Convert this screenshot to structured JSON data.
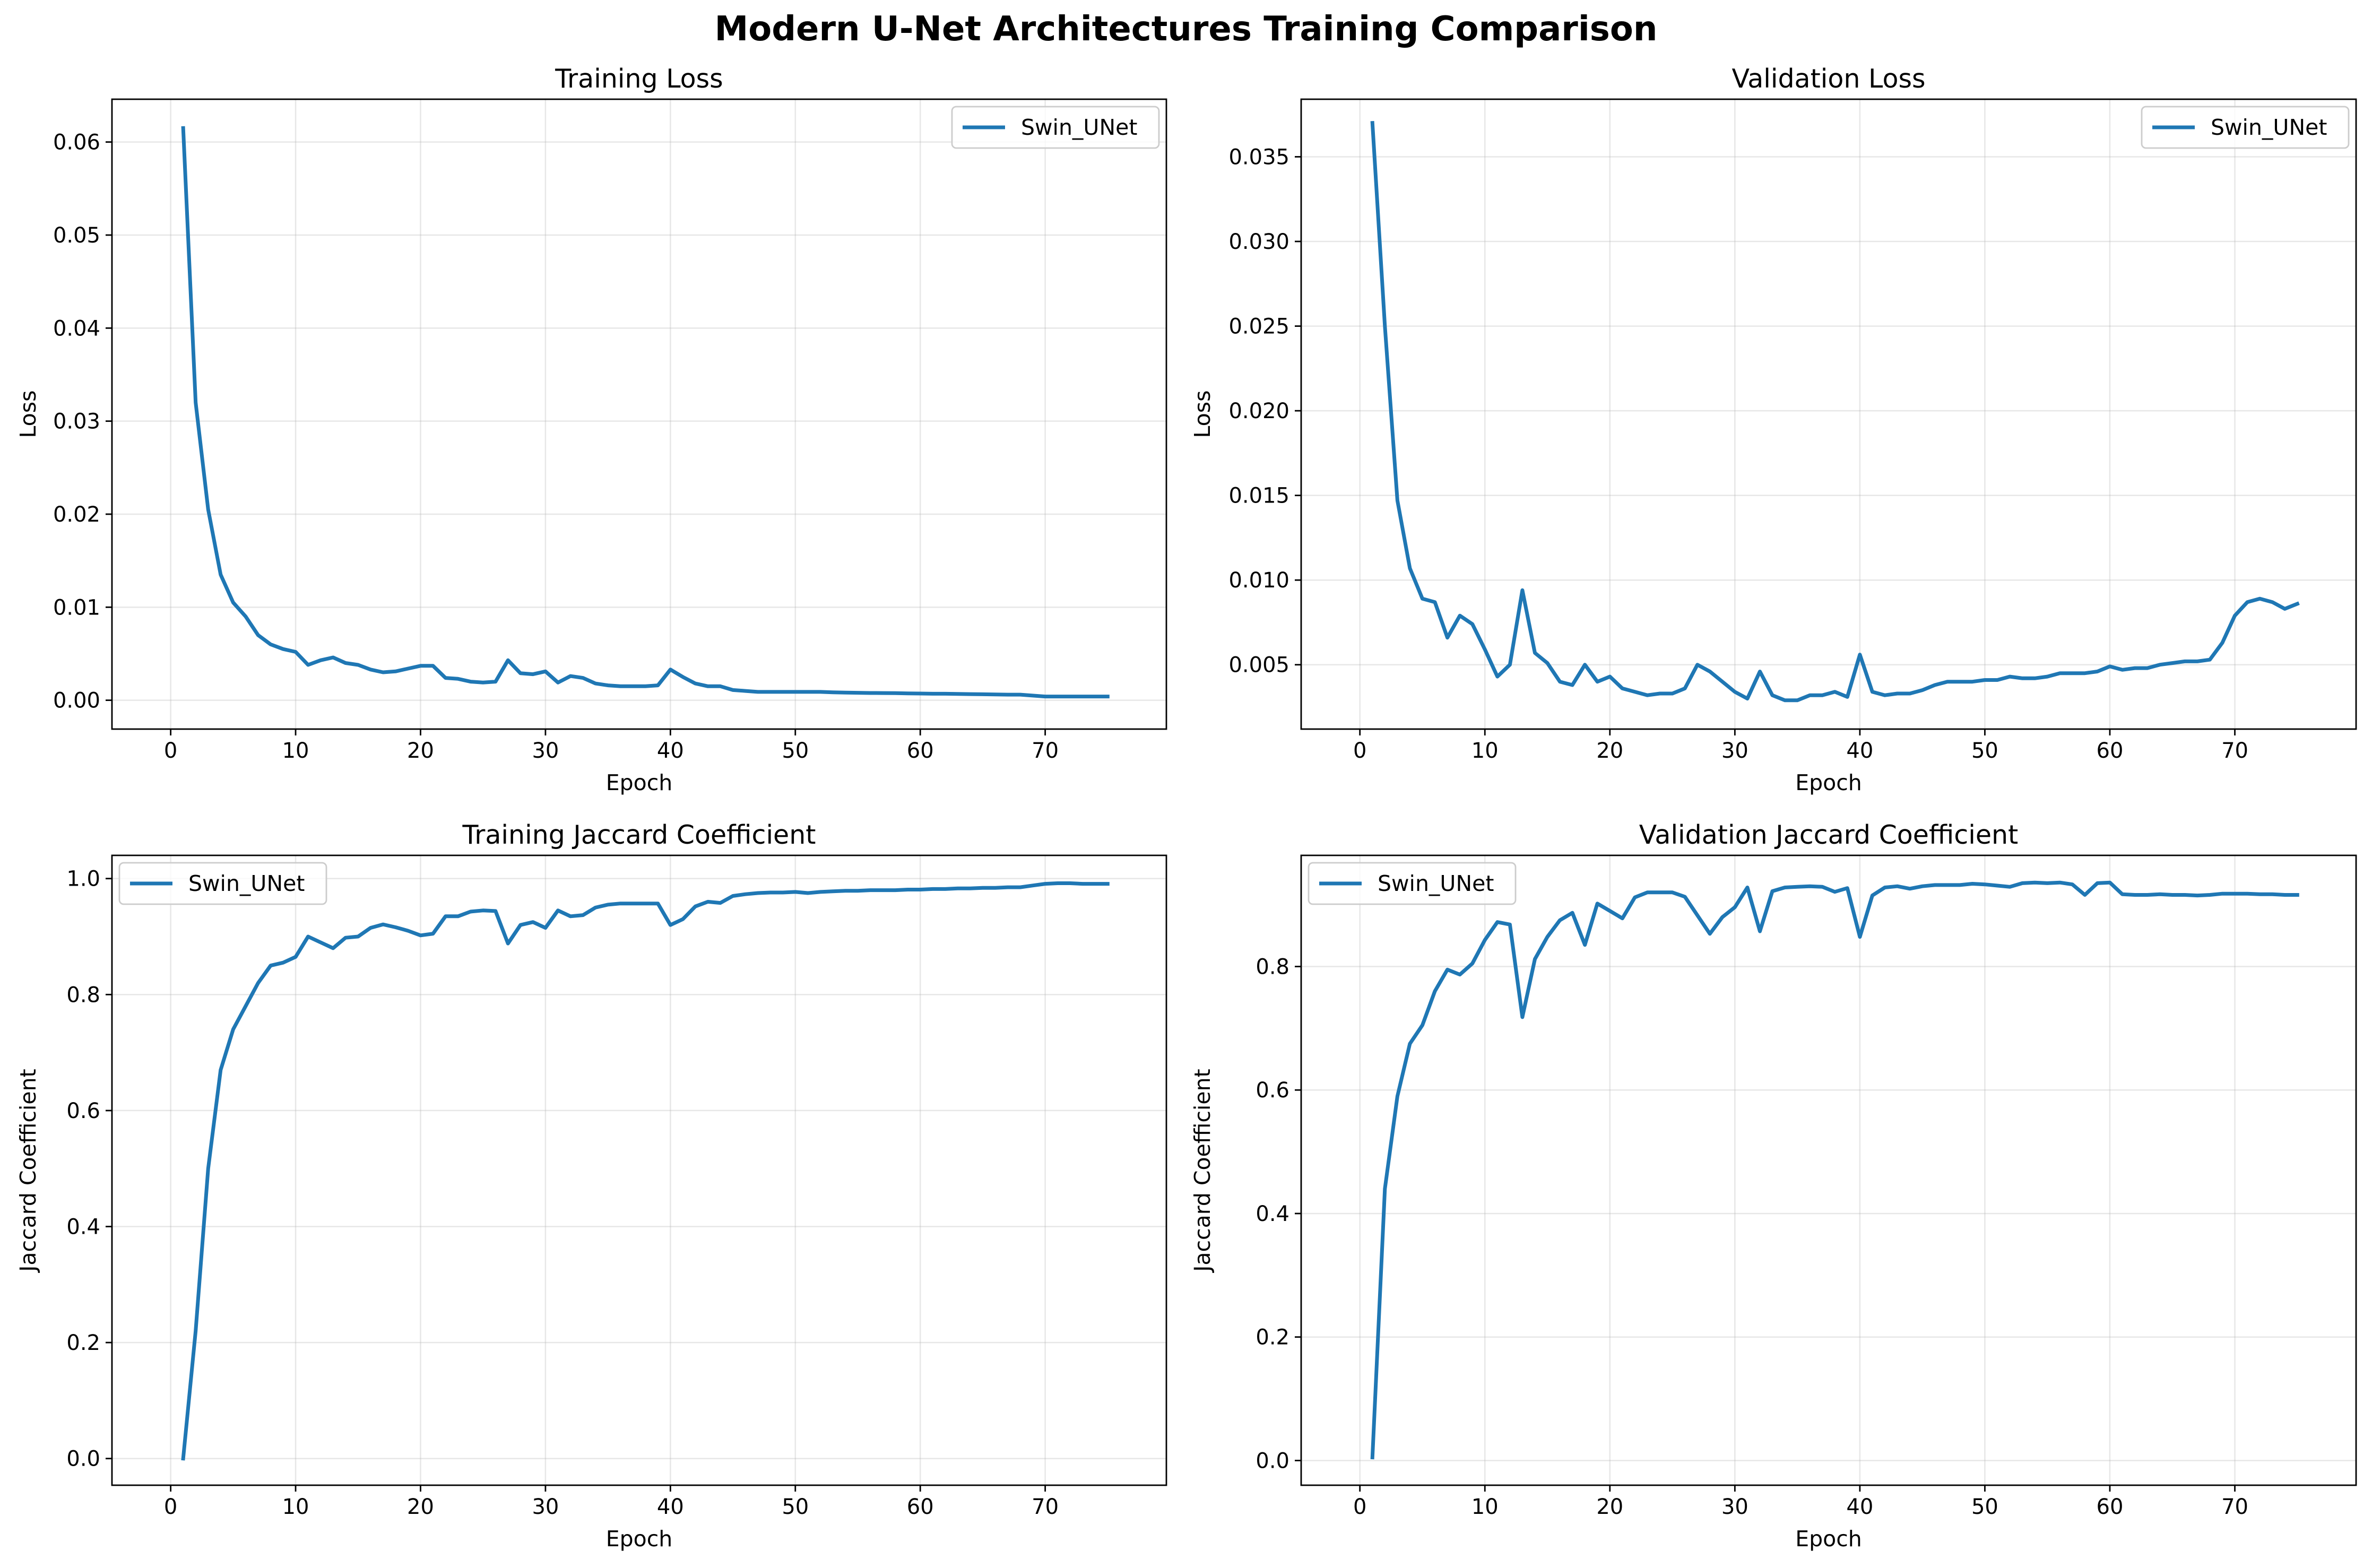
{
  "figure_title": "Modern U-Net Architectures Training Comparison",
  "colors": {
    "series": "#1f77b4"
  },
  "chart_data": [
    {
      "type": "line",
      "title": "Training Loss",
      "xlabel": "Epoch",
      "ylabel": "Loss",
      "xlim": [
        -4.7,
        79.7
      ],
      "ylim": [
        -0.0031,
        0.0646
      ],
      "xticks": [
        0,
        10,
        20,
        30,
        40,
        50,
        60,
        70
      ],
      "yticks": [
        0.0,
        0.01,
        0.02,
        0.03,
        0.04,
        0.05,
        0.06
      ],
      "ytick_labels": [
        "0.00",
        "0.01",
        "0.02",
        "0.03",
        "0.04",
        "0.05",
        "0.06"
      ],
      "grid": true,
      "legend": "upper right",
      "x": [
        1,
        2,
        3,
        4,
        5,
        6,
        7,
        8,
        9,
        10,
        11,
        12,
        13,
        14,
        15,
        16,
        17,
        18,
        19,
        20,
        21,
        22,
        23,
        24,
        25,
        26,
        27,
        28,
        29,
        30,
        31,
        32,
        33,
        34,
        35,
        36,
        37,
        38,
        39,
        40,
        41,
        42,
        43,
        44,
        45,
        46,
        47,
        48,
        49,
        50,
        51,
        52,
        53,
        54,
        55,
        56,
        57,
        58,
        59,
        60,
        61,
        62,
        63,
        64,
        65,
        66,
        67,
        68,
        69,
        70,
        71,
        72,
        73,
        74,
        75
      ],
      "series": [
        {
          "name": "Swin_UNet",
          "values": [
            0.0615,
            0.032,
            0.0205,
            0.0135,
            0.0105,
            0.009,
            0.007,
            0.006,
            0.0055,
            0.0052,
            0.0038,
            0.0043,
            0.0046,
            0.004,
            0.0038,
            0.0033,
            0.003,
            0.0031,
            0.0034,
            0.0037,
            0.0037,
            0.0024,
            0.0023,
            0.002,
            0.0019,
            0.002,
            0.0043,
            0.0029,
            0.0028,
            0.0031,
            0.0019,
            0.0026,
            0.0024,
            0.0018,
            0.0016,
            0.0015,
            0.0015,
            0.0015,
            0.0016,
            0.0033,
            0.0025,
            0.0018,
            0.0015,
            0.0015,
            0.0011,
            0.001,
            0.0009,
            0.0009,
            0.0009,
            0.0009,
            0.0009,
            0.0009,
            0.00085,
            0.00082,
            0.0008,
            0.00078,
            0.00077,
            0.00076,
            0.00074,
            0.00072,
            0.0007,
            0.0007,
            0.00068,
            0.00066,
            0.00064,
            0.00062,
            0.0006,
            0.0006,
            0.0005,
            0.0004,
            0.0004,
            0.0004,
            0.0004,
            0.0004,
            0.0004
          ]
        }
      ]
    },
    {
      "type": "line",
      "title": "Validation Loss",
      "xlabel": "Epoch",
      "ylabel": "Loss",
      "xlim": [
        -4.7,
        79.7
      ],
      "ylim": [
        0.0012,
        0.0384
      ],
      "xticks": [
        0,
        10,
        20,
        30,
        40,
        50,
        60,
        70
      ],
      "yticks": [
        0.005,
        0.01,
        0.015,
        0.02,
        0.025,
        0.03,
        0.035
      ],
      "ytick_labels": [
        "0.005",
        "0.010",
        "0.015",
        "0.020",
        "0.025",
        "0.030",
        "0.035"
      ],
      "grid": true,
      "legend": "upper right",
      "x": [
        1,
        2,
        3,
        4,
        5,
        6,
        7,
        8,
        9,
        10,
        11,
        12,
        13,
        14,
        15,
        16,
        17,
        18,
        19,
        20,
        21,
        22,
        23,
        24,
        25,
        26,
        27,
        28,
        29,
        30,
        31,
        32,
        33,
        34,
        35,
        36,
        37,
        38,
        39,
        40,
        41,
        42,
        43,
        44,
        45,
        46,
        47,
        48,
        49,
        50,
        51,
        52,
        53,
        54,
        55,
        56,
        57,
        58,
        59,
        60,
        61,
        62,
        63,
        64,
        65,
        66,
        67,
        68,
        69,
        70,
        71,
        72,
        73,
        74,
        75
      ],
      "series": [
        {
          "name": "Swin_UNet",
          "values": [
            0.037,
            0.025,
            0.0147,
            0.0107,
            0.0089,
            0.0087,
            0.0066,
            0.0079,
            0.0074,
            0.0059,
            0.0043,
            0.005,
            0.0094,
            0.0057,
            0.0051,
            0.004,
            0.0038,
            0.005,
            0.004,
            0.0043,
            0.0036,
            0.0034,
            0.0032,
            0.0033,
            0.0033,
            0.0036,
            0.005,
            0.0046,
            0.004,
            0.0034,
            0.003,
            0.0046,
            0.0032,
            0.0029,
            0.0029,
            0.0032,
            0.0032,
            0.0034,
            0.0031,
            0.0056,
            0.0034,
            0.0032,
            0.0033,
            0.0033,
            0.0035,
            0.0038,
            0.004,
            0.004,
            0.004,
            0.0041,
            0.0041,
            0.0043,
            0.0042,
            0.0042,
            0.0043,
            0.0045,
            0.0045,
            0.0045,
            0.0046,
            0.0049,
            0.0047,
            0.0048,
            0.0048,
            0.005,
            0.0051,
            0.0052,
            0.0052,
            0.0053,
            0.0063,
            0.0079,
            0.0087,
            0.0089,
            0.0087,
            0.0083,
            0.0086
          ]
        }
      ]
    },
    {
      "type": "line",
      "title": "Training Jaccard Coefficient",
      "xlabel": "Epoch",
      "ylabel": "Jaccard Coefficient",
      "xlim": [
        -4.7,
        79.7
      ],
      "ylim": [
        -0.046,
        1.04
      ],
      "xticks": [
        0,
        10,
        20,
        30,
        40,
        50,
        60,
        70
      ],
      "yticks": [
        0.0,
        0.2,
        0.4,
        0.6,
        0.8,
        1.0
      ],
      "ytick_labels": [
        "0.0",
        "0.2",
        "0.4",
        "0.6",
        "0.8",
        "1.0"
      ],
      "grid": true,
      "legend": "upper left",
      "x": [
        1,
        2,
        3,
        4,
        5,
        6,
        7,
        8,
        9,
        10,
        11,
        12,
        13,
        14,
        15,
        16,
        17,
        18,
        19,
        20,
        21,
        22,
        23,
        24,
        25,
        26,
        27,
        28,
        29,
        30,
        31,
        32,
        33,
        34,
        35,
        36,
        37,
        38,
        39,
        40,
        41,
        42,
        43,
        44,
        45,
        46,
        47,
        48,
        49,
        50,
        51,
        52,
        53,
        54,
        55,
        56,
        57,
        58,
        59,
        60,
        61,
        62,
        63,
        64,
        65,
        66,
        67,
        68,
        69,
        70,
        71,
        72,
        73,
        74,
        75
      ],
      "series": [
        {
          "name": "Swin_UNet",
          "values": [
            0.0,
            0.22,
            0.5,
            0.67,
            0.74,
            0.78,
            0.82,
            0.85,
            0.855,
            0.865,
            0.9,
            0.89,
            0.88,
            0.898,
            0.9,
            0.915,
            0.921,
            0.916,
            0.91,
            0.902,
            0.905,
            0.935,
            0.935,
            0.943,
            0.945,
            0.944,
            0.888,
            0.92,
            0.925,
            0.915,
            0.945,
            0.935,
            0.937,
            0.95,
            0.955,
            0.957,
            0.957,
            0.957,
            0.957,
            0.92,
            0.93,
            0.952,
            0.96,
            0.958,
            0.97,
            0.973,
            0.975,
            0.976,
            0.976,
            0.977,
            0.975,
            0.977,
            0.978,
            0.979,
            0.979,
            0.98,
            0.98,
            0.98,
            0.981,
            0.981,
            0.982,
            0.982,
            0.983,
            0.983,
            0.984,
            0.984,
            0.985,
            0.985,
            0.988,
            0.991,
            0.992,
            0.992,
            0.991,
            0.991,
            0.991
          ]
        }
      ]
    },
    {
      "type": "line",
      "title": "Validation Jaccard Coefficient",
      "xlabel": "Epoch",
      "ylabel": "Jaccard Coefficient",
      "xlim": [
        -4.7,
        79.7
      ],
      "ylim": [
        -0.04,
        0.98
      ],
      "xticks": [
        0,
        10,
        20,
        30,
        40,
        50,
        60,
        70
      ],
      "yticks": [
        0.0,
        0.2,
        0.4,
        0.6,
        0.8
      ],
      "ytick_labels": [
        "0.0",
        "0.2",
        "0.4",
        "0.6",
        "0.8"
      ],
      "grid": true,
      "legend": "upper left",
      "x": [
        1,
        2,
        3,
        4,
        5,
        6,
        7,
        8,
        9,
        10,
        11,
        12,
        13,
        14,
        15,
        16,
        17,
        18,
        19,
        20,
        21,
        22,
        23,
        24,
        25,
        26,
        27,
        28,
        29,
        30,
        31,
        32,
        33,
        34,
        35,
        36,
        37,
        38,
        39,
        40,
        41,
        42,
        43,
        44,
        45,
        46,
        47,
        48,
        49,
        50,
        51,
        52,
        53,
        54,
        55,
        56,
        57,
        58,
        59,
        60,
        61,
        62,
        63,
        64,
        65,
        66,
        67,
        68,
        69,
        70,
        71,
        72,
        73,
        74,
        75
      ],
      "series": [
        {
          "name": "Swin_UNet",
          "values": [
            0.005,
            0.44,
            0.59,
            0.675,
            0.705,
            0.76,
            0.795,
            0.787,
            0.805,
            0.843,
            0.872,
            0.868,
            0.718,
            0.812,
            0.848,
            0.875,
            0.887,
            0.835,
            0.902,
            0.89,
            0.878,
            0.912,
            0.92,
            0.92,
            0.92,
            0.913,
            0.883,
            0.853,
            0.88,
            0.896,
            0.928,
            0.857,
            0.922,
            0.928,
            0.929,
            0.93,
            0.929,
            0.921,
            0.927,
            0.848,
            0.915,
            0.928,
            0.93,
            0.926,
            0.93,
            0.932,
            0.932,
            0.932,
            0.934,
            0.933,
            0.931,
            0.929,
            0.935,
            0.936,
            0.935,
            0.936,
            0.933,
            0.916,
            0.935,
            0.936,
            0.917,
            0.916,
            0.916,
            0.917,
            0.916,
            0.916,
            0.915,
            0.916,
            0.918,
            0.918,
            0.918,
            0.917,
            0.917,
            0.916,
            0.916
          ]
        }
      ]
    }
  ]
}
